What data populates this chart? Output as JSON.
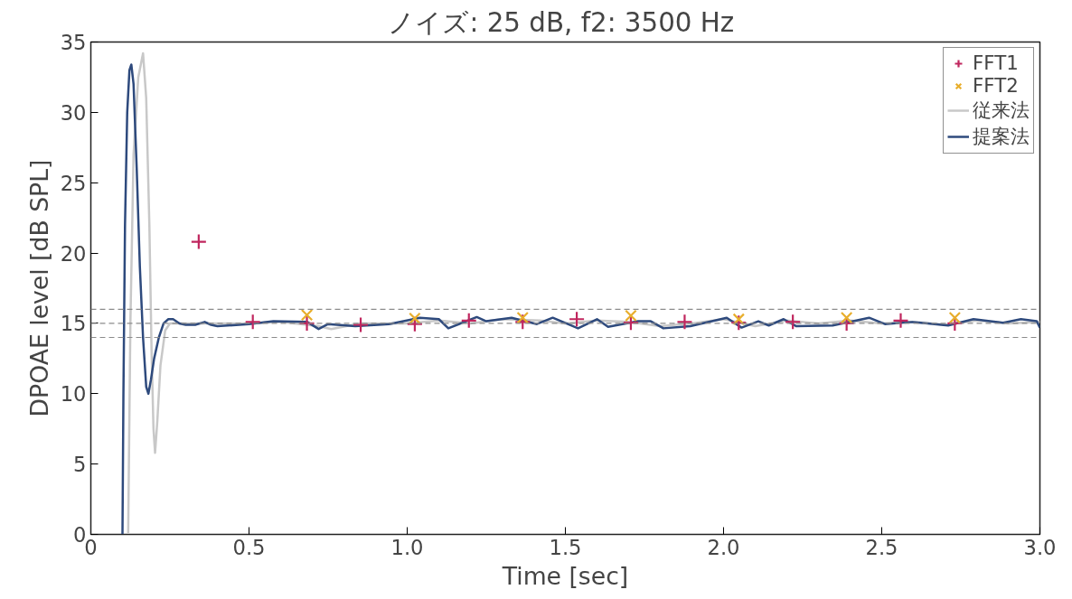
{
  "chart_data": {
    "type": "line",
    "title": "ノイズ: 25 dB,  f2: 3500 Hz",
    "xlabel": "Time [sec]",
    "ylabel": "DPOAE level [dB SPL]",
    "xlim": [
      0,
      3
    ],
    "ylim": [
      0,
      35
    ],
    "xticks": [
      0,
      0.5,
      {
        "value": 1,
        "label": "1.0"
      },
      1.5,
      {
        "value": 2,
        "label": "2.0"
      },
      2.5,
      {
        "value": 3,
        "label": "3.0"
      }
    ],
    "yticks": [
      0,
      5,
      10,
      15,
      20,
      25,
      30,
      35
    ],
    "grid": false,
    "legend": "top right",
    "line_style": "solid",
    "ref_lines": [
      {
        "axis": "y",
        "value": 16,
        "color": "#8c8c8c",
        "line_style": "dashed"
      },
      {
        "axis": "y",
        "value": 15,
        "color": "#8c8c8c",
        "line_style": "dashed"
      },
      {
        "axis": "y",
        "value": 14,
        "color": "#8c8c8c",
        "line_style": "dashed"
      }
    ],
    "series": [
      {
        "name": "FFT1",
        "type": "scatter",
        "marker": "cross",
        "color": "#c0265e",
        "x": [
          0.341,
          0.512,
          0.683,
          0.853,
          1.024,
          1.195,
          1.365,
          1.536,
          1.707,
          1.877,
          2.048,
          2.219,
          2.389,
          2.56,
          2.731
        ],
        "values": [
          20.8,
          15.1,
          15.0,
          14.9,
          14.95,
          15.2,
          15.1,
          15.3,
          15.05,
          15.1,
          15.05,
          15.1,
          15.0,
          15.2,
          15.0
        ]
      },
      {
        "name": "FFT2",
        "type": "scatter",
        "marker": "x",
        "color": "#e8ae2c",
        "x": [
          0.683,
          1.024,
          1.365,
          1.707,
          2.048,
          2.389,
          2.731
        ],
        "values": [
          15.6,
          15.35,
          15.4,
          15.55,
          15.3,
          15.4,
          15.4
        ]
      },
      {
        "name": "従来法",
        "color": "#c8c8c8",
        "x": [
          0.118,
          0.125,
          0.135,
          0.15,
          0.165,
          0.175,
          0.185,
          0.192,
          0.198,
          0.203,
          0.21,
          0.22,
          0.235,
          0.25,
          0.28,
          0.4,
          0.5,
          0.6,
          0.72,
          0.76,
          0.85,
          1.0,
          1.1,
          1.2,
          1.3,
          1.42,
          1.5,
          1.6,
          1.7,
          1.8,
          1.9,
          2.0,
          2.1,
          2.2,
          2.3,
          2.4,
          2.5,
          2.6,
          2.7,
          2.8,
          2.9,
          3.0
        ],
        "values": [
          0,
          15,
          27,
          32.5,
          34.2,
          31,
          22,
          13,
          7.5,
          5.8,
          8,
          12,
          14.5,
          15.0,
          15.0,
          15.0,
          15.0,
          15.1,
          14.8,
          14.6,
          15.0,
          15.0,
          15.2,
          15.0,
          15.3,
          15.2,
          15.0,
          15.2,
          15.1,
          14.8,
          15.0,
          15.3,
          14.8,
          15.2,
          15.0,
          15.2,
          15.0,
          15.1,
          14.9,
          15.2,
          15.0,
          15.1
        ]
      },
      {
        "name": "提案法",
        "color": "#2e4a7d",
        "x": [
          0.1,
          0.103,
          0.108,
          0.115,
          0.122,
          0.128,
          0.135,
          0.145,
          0.155,
          0.165,
          0.175,
          0.182,
          0.19,
          0.2,
          0.215,
          0.23,
          0.245,
          0.26,
          0.28,
          0.3,
          0.33,
          0.36,
          0.38,
          0.4,
          0.5,
          0.577,
          0.684,
          0.72,
          0.75,
          0.836,
          0.943,
          1.04,
          1.1,
          1.13,
          1.22,
          1.25,
          1.33,
          1.41,
          1.46,
          1.54,
          1.6,
          1.635,
          1.73,
          1.77,
          1.81,
          1.895,
          2.01,
          2.057,
          2.11,
          2.143,
          2.19,
          2.23,
          2.345,
          2.46,
          2.51,
          2.596,
          2.71,
          2.79,
          2.884,
          2.94,
          2.99,
          3.0
        ],
        "values": [
          0,
          10,
          22,
          30,
          33.0,
          33.4,
          32,
          26,
          19,
          14,
          10.5,
          10.0,
          11,
          12.5,
          14,
          15.0,
          15.3,
          15.3,
          15.0,
          14.9,
          14.9,
          15.1,
          14.9,
          14.8,
          14.95,
          15.15,
          15.1,
          14.6,
          14.95,
          14.8,
          14.95,
          15.4,
          15.3,
          14.65,
          15.45,
          15.15,
          15.4,
          14.95,
          15.4,
          14.65,
          15.3,
          14.75,
          15.15,
          15.15,
          14.65,
          14.8,
          15.4,
          14.7,
          15.15,
          14.85,
          15.3,
          14.8,
          14.85,
          15.4,
          14.95,
          15.1,
          14.85,
          15.3,
          15.05,
          15.3,
          15.15,
          14.7
        ]
      }
    ]
  }
}
